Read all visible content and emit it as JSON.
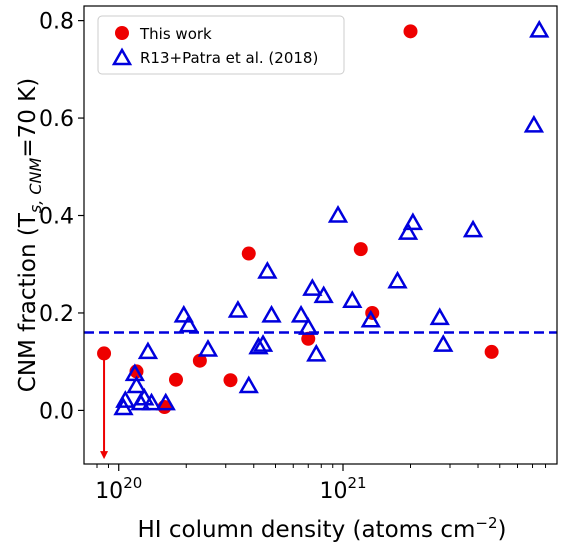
{
  "chart_data": {
    "type": "scatter",
    "xlabel": "HI column density (atoms cm",
    "xlabel_sup": "−2",
    "xlabel_end": ")",
    "ylabel": "CNM fraction (T",
    "ylabel_sub": "s, CNM",
    "ylabel_end": "=70 K)",
    "x_scale": "log",
    "xlim": [
      7e+19,
      9e+21
    ],
    "ylim": [
      -0.11,
      0.83
    ],
    "x_ticks": [
      {
        "value": 1e+20,
        "base": "10",
        "exp": "20"
      },
      {
        "value": 1e+21,
        "base": "10",
        "exp": "21"
      }
    ],
    "y_ticks": [
      {
        "value": 0.0,
        "label": "0.0"
      },
      {
        "value": 0.2,
        "label": "0.2"
      },
      {
        "value": 0.4,
        "label": "0.4"
      },
      {
        "value": 0.6,
        "label": "0.6"
      },
      {
        "value": 0.8,
        "label": "0.8"
      }
    ],
    "grid": false,
    "legend_position": "upper-left",
    "threshold_line": {
      "y": 0.16,
      "style": "dashed",
      "color": "#0000dd"
    },
    "upper_limit_arrow": {
      "x": 8.6e+19,
      "y_from": 0.115,
      "y_to": -0.1,
      "color": "#ee0000"
    },
    "series": [
      {
        "name": "This work",
        "marker": "circle",
        "color": "#ee0000",
        "points": [
          [
            8.6e+19,
            0.117
          ],
          [
            1.2e+20,
            0.08
          ],
          [
            1.6e+20,
            0.007
          ],
          [
            1.8e+20,
            0.063
          ],
          [
            2.3e+20,
            0.102
          ],
          [
            3.15e+20,
            0.062
          ],
          [
            3.8e+20,
            0.322
          ],
          [
            7e+20,
            0.147
          ],
          [
            1.2e+21,
            0.331
          ],
          [
            1.35e+21,
            0.2
          ],
          [
            2e+21,
            0.778
          ],
          [
            4.6e+21,
            0.12
          ]
        ]
      },
      {
        "name": "R13+Patra et al. (2018)",
        "marker": "triangle-open",
        "color": "#0000dd",
        "points": [
          [
            1.05e+20,
            0.005
          ],
          [
            1.07e+20,
            0.02
          ],
          [
            1.18e+20,
            0.075
          ],
          [
            1.2e+20,
            0.05
          ],
          [
            1.25e+20,
            0.015
          ],
          [
            1.3e+20,
            0.025
          ],
          [
            1.35e+20,
            0.12
          ],
          [
            1.4e+20,
            0.015
          ],
          [
            1.62e+20,
            0.015
          ],
          [
            1.95e+20,
            0.195
          ],
          [
            2.05e+20,
            0.175
          ],
          [
            2.5e+20,
            0.125
          ],
          [
            3.4e+20,
            0.205
          ],
          [
            3.8e+20,
            0.05
          ],
          [
            4.2e+20,
            0.13
          ],
          [
            4.4e+20,
            0.135
          ],
          [
            4.6e+20,
            0.285
          ],
          [
            4.8e+20,
            0.195
          ],
          [
            6.5e+20,
            0.195
          ],
          [
            7e+20,
            0.17
          ],
          [
            7.3e+20,
            0.25
          ],
          [
            7.6e+20,
            0.115
          ],
          [
            8.2e+20,
            0.235
          ],
          [
            9.5e+20,
            0.4
          ],
          [
            1.1e+21,
            0.225
          ],
          [
            1.33e+21,
            0.185
          ],
          [
            1.75e+21,
            0.265
          ],
          [
            1.95e+21,
            0.365
          ],
          [
            2.05e+21,
            0.385
          ],
          [
            2.7e+21,
            0.19
          ],
          [
            2.8e+21,
            0.135
          ],
          [
            3.8e+21,
            0.37
          ],
          [
            7.1e+21,
            0.585
          ],
          [
            7.5e+21,
            0.78
          ]
        ]
      }
    ]
  }
}
